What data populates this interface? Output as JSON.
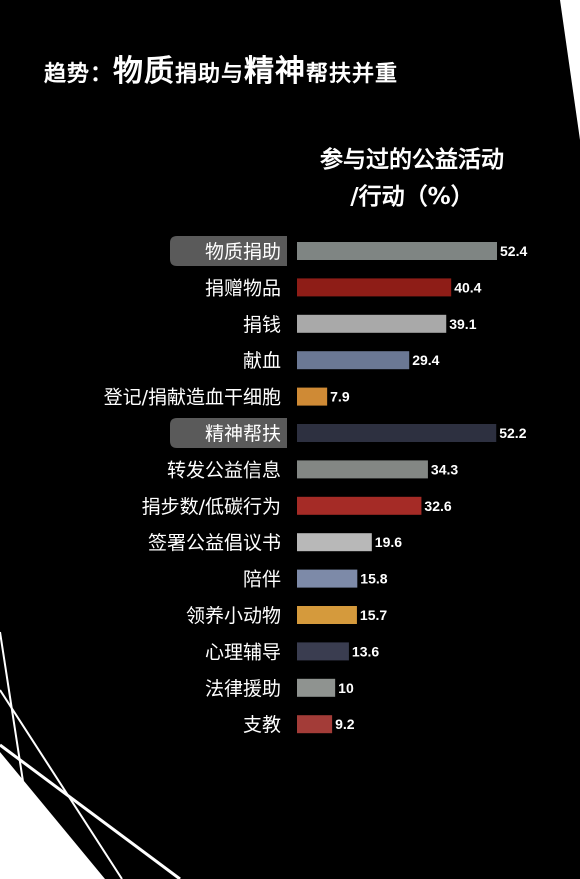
{
  "title": {
    "prefix": "趋势：",
    "part1": "物质",
    "part2": "捐助与",
    "part3": "精神",
    "part4": "帮扶并重"
  },
  "subtitle": {
    "line1": "参与过的公益活动",
    "line2": "/行动（%）"
  },
  "chart_data": {
    "type": "bar",
    "orientation": "horizontal",
    "categories": [
      "物质捐助",
      "捐赠物品",
      "捐钱",
      "献血",
      "登记/捐献造血干细胞",
      "精神帮扶",
      "转发公益信息",
      "捐步数/低碳行为",
      "签署公益倡议书",
      "陪伴",
      "领养小动物",
      "心理辅导",
      "法律援助",
      "支教"
    ],
    "values": [
      52.4,
      40.4,
      39.1,
      29.4,
      7.9,
      52.2,
      34.3,
      32.6,
      19.6,
      15.8,
      15.7,
      13.6,
      10,
      9.2
    ],
    "value_labels": [
      "52.4",
      "40.4",
      "39.1",
      "29.4",
      "7.9",
      "52.2",
      "34.3",
      "32.6",
      "19.6",
      "15.8",
      "15.7",
      "13.6",
      "10",
      "9.2"
    ],
    "group_headers": [
      "物质捐助",
      "精神帮扶"
    ],
    "colors": [
      "#7f8583",
      "#8e1d17",
      "#a9a9a9",
      "#6b7894",
      "#cf8a35",
      "#2d3040",
      "#838784",
      "#a52b26",
      "#b8b8b8",
      "#7d8aa8",
      "#d59a3c",
      "#3a3d50",
      "#8f9390",
      "#a33c38"
    ],
    "header_label_bg": "#5a5a5a",
    "xlim": [
      0,
      52.4
    ],
    "grid": false,
    "legend": "none"
  }
}
